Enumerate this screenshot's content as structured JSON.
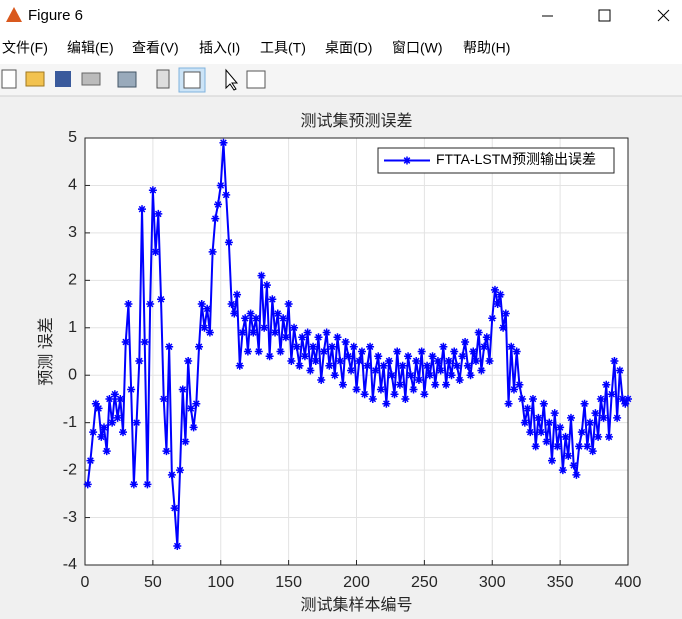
{
  "window": {
    "title": "Figure 6",
    "menu": [
      "文件(F)",
      "编辑(E)",
      "查看(V)",
      "插入(I)",
      "工具(T)",
      "桌面(D)",
      "窗口(W)",
      "帮助(H)"
    ]
  },
  "chart_data": {
    "type": "line",
    "title": "测试集预测误差",
    "xlabel": "测试集样本编号",
    "ylabel": "预测 误差",
    "grid": true,
    "legend": "top-right",
    "xlim": [
      0,
      400
    ],
    "xticks": [
      0,
      50,
      100,
      150,
      200,
      250,
      300,
      350,
      400
    ],
    "ylim": [
      -4,
      5
    ],
    "yticks": [
      -4,
      -3,
      -2,
      -1,
      0,
      1,
      2,
      3,
      4,
      5
    ],
    "x": [
      2,
      4,
      6,
      8,
      10,
      12,
      14,
      16,
      18,
      20,
      22,
      24,
      26,
      28,
      30,
      32,
      34,
      36,
      38,
      40,
      42,
      44,
      46,
      48,
      50,
      52,
      54,
      56,
      58,
      60,
      62,
      64,
      66,
      68,
      70,
      72,
      74,
      76,
      78,
      80,
      82,
      84,
      86,
      88,
      90,
      92,
      94,
      96,
      98,
      100,
      102,
      104,
      106,
      108,
      110,
      112,
      114,
      116,
      118,
      120,
      122,
      124,
      126,
      128,
      130,
      132,
      134,
      136,
      138,
      140,
      142,
      144,
      146,
      148,
      150,
      152,
      154,
      156,
      158,
      160,
      162,
      164,
      166,
      168,
      170,
      172,
      174,
      176,
      178,
      180,
      182,
      184,
      186,
      188,
      190,
      192,
      194,
      196,
      198,
      200,
      202,
      204,
      206,
      208,
      210,
      212,
      214,
      216,
      218,
      220,
      222,
      224,
      226,
      228,
      230,
      232,
      234,
      236,
      238,
      240,
      242,
      244,
      246,
      248,
      250,
      252,
      254,
      256,
      258,
      260,
      262,
      264,
      266,
      268,
      270,
      272,
      274,
      276,
      278,
      280,
      282,
      284,
      286,
      288,
      290,
      292,
      294,
      296,
      298,
      300,
      302,
      304,
      306,
      308,
      310,
      312,
      314,
      316,
      318,
      320,
      322,
      324,
      326,
      328,
      330,
      332,
      334,
      336,
      338,
      340,
      342,
      344,
      346,
      348,
      350,
      352,
      354,
      356,
      358,
      360,
      362,
      364,
      366,
      368,
      370,
      372,
      374,
      376,
      378,
      380,
      382,
      384,
      386,
      388,
      390,
      392,
      394,
      396,
      398,
      400
    ],
    "series": [
      {
        "name": "FTTA-LSTM预测输出误差",
        "color": "#0000ff",
        "values": [
          -2.3,
          -1.8,
          -1.2,
          -0.6,
          -0.7,
          -1.3,
          -1.1,
          -1.6,
          -0.5,
          -1.0,
          -0.4,
          -0.9,
          -0.5,
          -1.2,
          0.7,
          1.5,
          -0.3,
          -2.3,
          -1.0,
          0.3,
          3.5,
          0.7,
          -2.3,
          1.5,
          3.9,
          2.6,
          3.4,
          1.6,
          -0.5,
          -1.6,
          0.6,
          -2.1,
          -2.8,
          -3.6,
          -2.0,
          -0.3,
          -1.4,
          0.3,
          -0.7,
          -1.1,
          -0.6,
          0.6,
          1.5,
          1.0,
          1.4,
          0.9,
          2.6,
          3.3,
          3.6,
          4.0,
          4.9,
          3.8,
          2.8,
          1.5,
          1.3,
          1.7,
          0.2,
          0.9,
          1.2,
          0.5,
          1.3,
          0.9,
          1.2,
          0.5,
          2.1,
          1.0,
          1.9,
          0.4,
          1.6,
          0.9,
          1.3,
          0.5,
          1.2,
          0.8,
          1.5,
          0.3,
          1.0,
          0.6,
          0.2,
          0.8,
          0.4,
          0.9,
          0.1,
          0.6,
          0.3,
          0.8,
          -0.1,
          0.5,
          0.9,
          0.2,
          0.6,
          0.0,
          0.8,
          0.3,
          -0.2,
          0.7,
          0.4,
          0.1,
          0.6,
          -0.3,
          0.3,
          0.5,
          -0.4,
          0.2,
          0.6,
          -0.5,
          0.1,
          0.4,
          -0.3,
          0.2,
          -0.6,
          0.3,
          0.0,
          -0.4,
          0.5,
          -0.2,
          0.2,
          -0.5,
          0.4,
          0.0,
          -0.3,
          0.3,
          -0.1,
          0.5,
          -0.4,
          0.2,
          0.0,
          0.4,
          -0.2,
          0.3,
          0.1,
          0.6,
          -0.2,
          0.3,
          0.0,
          0.5,
          0.2,
          -0.1,
          0.4,
          0.7,
          0.2,
          0.0,
          0.5,
          0.3,
          0.9,
          0.1,
          0.6,
          0.8,
          0.3,
          1.2,
          1.8,
          1.5,
          1.7,
          1.0,
          1.3,
          -0.6,
          0.6,
          -0.3,
          0.5,
          -0.2,
          -0.5,
          -1.0,
          -0.7,
          -1.2,
          -0.5,
          -1.5,
          -0.9,
          -1.2,
          -0.6,
          -1.4,
          -1.0,
          -1.8,
          -0.8,
          -1.5,
          -1.1,
          -2.0,
          -1.3,
          -1.7,
          -0.9,
          -1.9,
          -2.1,
          -1.5,
          -1.2,
          -0.6,
          -1.5,
          -1.0,
          -1.6,
          -0.8,
          -1.3,
          -0.5,
          -0.9,
          -0.2,
          -1.3,
          -0.4,
          0.3,
          -0.9,
          0.1,
          -0.5,
          -0.6,
          -0.5
        ]
      }
    ]
  }
}
